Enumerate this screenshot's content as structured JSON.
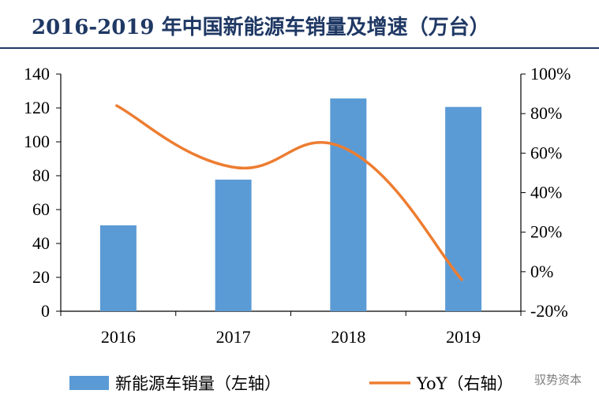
{
  "title": "2016-2019 年中国新能源车销量及增速（万台）",
  "watermark": "驭势资本",
  "chart_data": {
    "type": "bar",
    "categories": [
      "2016",
      "2017",
      "2018",
      "2019"
    ],
    "series": [
      {
        "name": "新能源车销量（左轴）",
        "type": "bar",
        "axis": "left",
        "color": "#5b9bd5",
        "values": [
          50.7,
          77.7,
          125.6,
          120.6
        ]
      },
      {
        "name": "YoY（右轴）",
        "type": "line",
        "axis": "right",
        "color": "#ed7d31",
        "values": [
          84,
          53,
          62,
          -4
        ]
      }
    ],
    "y_left": {
      "min": 0,
      "max": 140,
      "step": 20,
      "ticks": [
        "0",
        "20",
        "40",
        "60",
        "80",
        "100",
        "120",
        "140"
      ]
    },
    "y_right": {
      "min": -20,
      "max": 100,
      "step": 20,
      "ticks": [
        "-20%",
        "0%",
        "20%",
        "40%",
        "60%",
        "80%",
        "100%"
      ]
    },
    "legend_position": "bottom",
    "grid": false
  }
}
